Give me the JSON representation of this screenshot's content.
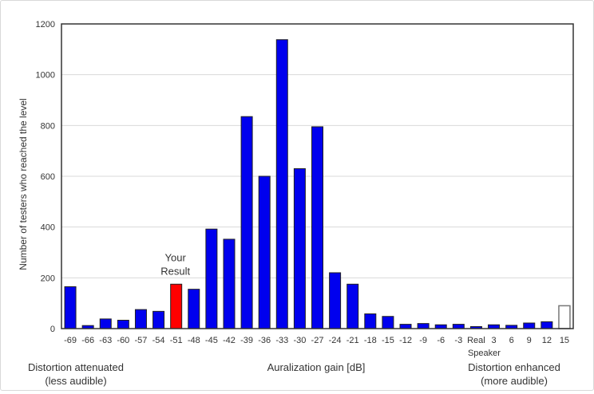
{
  "chart_data": {
    "type": "bar",
    "ylabel": "Number of testers who reached the level",
    "xlabel": "Auralization gain [dB]",
    "ylim": [
      0,
      1200
    ],
    "yticks": [
      0,
      200,
      400,
      600,
      800,
      1000,
      1200
    ],
    "grid": true,
    "categories": [
      "-69",
      "-66",
      "-63",
      "-60",
      "-57",
      "-54",
      "-51",
      "-48",
      "-45",
      "-42",
      "-39",
      "-36",
      "-33",
      "-30",
      "-27",
      "-24",
      "-21",
      "-18",
      "-15",
      "-12",
      "-9",
      "-6",
      "-3",
      "Real",
      "3",
      "6",
      "9",
      "12",
      "15"
    ],
    "values": [
      165,
      12,
      38,
      33,
      75,
      68,
      175,
      155,
      392,
      352,
      835,
      600,
      1138,
      630,
      795,
      220,
      175,
      58,
      48,
      17,
      20,
      15,
      17,
      8,
      15,
      13,
      22,
      27,
      90
    ],
    "highlight": {
      "category": "-51",
      "color": "#ff0000",
      "annotation_line1": "Your",
      "annotation_line2": "Result"
    },
    "outline_category": "15",
    "real_sublabel": "Speaker",
    "bar_color": "#0000ee",
    "left_note_line1": "Distortion attenuated",
    "left_note_line2": "(less audible)",
    "right_note_line1": "Distortion enhanced",
    "right_note_line2": "(more audible)"
  }
}
